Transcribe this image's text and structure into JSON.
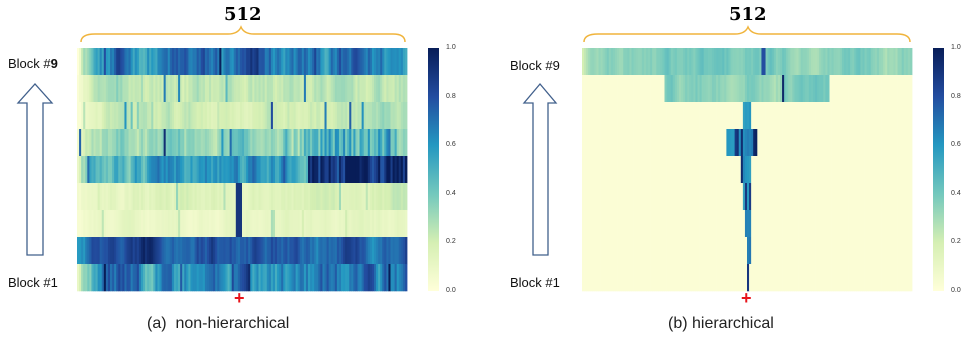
{
  "chart_data": [
    {
      "type": "heatmap",
      "caption": "(a)  non-hierarchical",
      "width_label": "512",
      "row_labels": [
        "Block #1",
        "Block #9"
      ],
      "top_label_bold_part": "9",
      "colorbar_range": [
        0.0,
        1.0
      ],
      "colorbar_ticks": [
        "0.0",
        "0.2",
        "0.4",
        "0.6",
        "0.8",
        "1.0"
      ],
      "colormap": "YlGnBu",
      "rows_count": 9,
      "columns": 512,
      "pattern": "attention spread across the full width in every block",
      "marker": "+"
    },
    {
      "type": "heatmap",
      "caption": "(b) hierarchical",
      "width_label": "512",
      "row_labels": [
        "Block #1",
        "Block #9"
      ],
      "colorbar_range": [
        0.0,
        1.0
      ],
      "colorbar_ticks": [
        "0.0",
        "0.2",
        "0.4",
        "0.6",
        "0.8",
        "1.0"
      ],
      "colormap": "YlGnBu",
      "rows_count": 9,
      "columns": 512,
      "pattern": "attention concentrated near the query in lower blocks, widening toward the top",
      "marker": "+"
    }
  ],
  "colors": {
    "brace": "#f0b43c",
    "arrow": "#41608c",
    "marker": "#e8141b"
  }
}
